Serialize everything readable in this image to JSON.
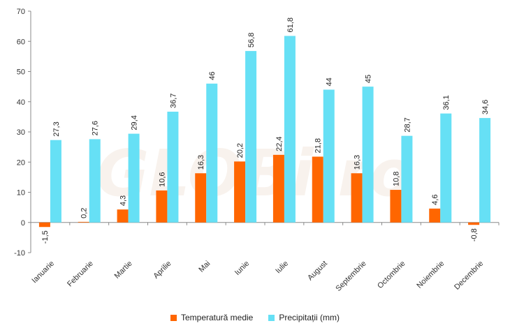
{
  "watermark": "GLOBi.ro",
  "chart_data": {
    "type": "bar",
    "categories": [
      "Ianuarie",
      "Februarie",
      "Martie",
      "Aprilie",
      "Mai",
      "Iunie",
      "Iulie",
      "August",
      "Septembrie",
      "Octombrie",
      "Noiembrie",
      "Decembrie"
    ],
    "series": [
      {
        "name": "Temperatură medie",
        "color": "#ff6600",
        "values": [
          -1.5,
          0.2,
          4.3,
          10.6,
          16.3,
          20.2,
          22.4,
          21.8,
          16.3,
          10.8,
          4.6,
          -0.8
        ],
        "labels": [
          "-1,5",
          "0,2",
          "4,3",
          "10,6",
          "16,3",
          "20,2",
          "22,4",
          "21,8",
          "16,3",
          "10,8",
          "4,6",
          "-0,8"
        ]
      },
      {
        "name": "Precipitații (mm)",
        "color": "#66e0f5",
        "values": [
          27.3,
          27.6,
          29.4,
          36.7,
          46,
          56.8,
          61.8,
          44,
          45,
          28.7,
          36.1,
          34.6
        ],
        "labels": [
          "27,3",
          "27,6",
          "29,4",
          "36,7",
          "46",
          "56,8",
          "61,8",
          "44",
          "45",
          "28,7",
          "36,1",
          "34,6"
        ]
      }
    ],
    "ylim": [
      -10,
      70
    ],
    "yticks": [
      -10,
      0,
      10,
      20,
      30,
      40,
      50,
      60,
      70
    ],
    "legend": "bottom",
    "grid": false
  }
}
